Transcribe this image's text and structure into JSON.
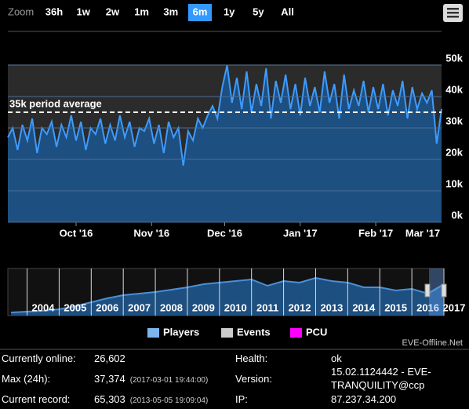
{
  "range_selector": {
    "label": "Zoom",
    "buttons": [
      "36h",
      "1w",
      "2w",
      "1m",
      "3m",
      "6m",
      "1y",
      "5y",
      "All"
    ],
    "selected": 5
  },
  "chart_data": [
    {
      "type": "area",
      "color": "#3d9bff",
      "fill": "#1d4f80",
      "values": [
        27000,
        30000,
        23000,
        31000,
        26000,
        33000,
        22000,
        30000,
        28000,
        32000,
        24000,
        31000,
        27000,
        34000,
        26000,
        32000,
        23000,
        30000,
        28000,
        33000,
        25000,
        31000,
        26000,
        34000,
        27000,
        32000,
        24000,
        30000,
        29000,
        33000,
        25000,
        31000,
        22000,
        32000,
        27000,
        30000,
        18000,
        29000,
        26000,
        33000,
        30000,
        34000,
        37000,
        33000,
        43000,
        50000,
        38000,
        46000,
        36000,
        48000,
        35000,
        44000,
        37000,
        49000,
        33000,
        45000,
        38000,
        47000,
        36000,
        44000,
        34000,
        46000,
        37000,
        43000,
        35000,
        48000,
        38000,
        44000,
        33000,
        47000,
        36000,
        42000,
        37000,
        45000,
        35000,
        43000,
        36000,
        44000,
        34000,
        42000,
        37000,
        45000,
        33000,
        43000,
        36000,
        41000,
        38000,
        42000,
        25000,
        36000
      ],
      "xlim": [
        0,
        89
      ],
      "xticks": [
        {
          "value": 14,
          "label": "Oct '16"
        },
        {
          "value": 29.5,
          "label": "Nov '16"
        },
        {
          "value": 44.5,
          "label": "Dec '16"
        },
        {
          "value": 60,
          "label": "Jan '17"
        },
        {
          "value": 75.5,
          "label": "Feb '17"
        },
        {
          "value": 89.5,
          "label": "Mar '17"
        }
      ],
      "ylim": [
        0,
        60000
      ],
      "yticks": [
        {
          "value": 0,
          "label": "0k"
        },
        {
          "value": 10000,
          "label": "10k"
        },
        {
          "value": 20000,
          "label": "20k"
        },
        {
          "value": 30000,
          "label": "30k"
        },
        {
          "value": 40000,
          "label": "40k"
        },
        {
          "value": 50000,
          "label": "50k"
        }
      ],
      "grid": true,
      "average": {
        "value": 35000,
        "label": "35k period average"
      }
    },
    {
      "type": "area",
      "color": "#4a8fd6",
      "fill": "#1d4f80",
      "x": [
        2003.5,
        2004,
        2004.5,
        2005,
        2005.5,
        2006,
        2006.5,
        2007,
        2007.5,
        2008,
        2008.5,
        2009,
        2009.5,
        2010,
        2010.5,
        2011,
        2011.5,
        2012,
        2012.5,
        2013,
        2013.5,
        2014,
        2014.5,
        2015,
        2015.5,
        2016,
        2016.5,
        2017
      ],
      "values": [
        4000,
        5000,
        6000,
        8000,
        12000,
        17000,
        22000,
        26000,
        28000,
        30000,
        33000,
        36000,
        40000,
        42000,
        44000,
        46000,
        38000,
        44000,
        42000,
        48000,
        44000,
        42000,
        36000,
        36000,
        32000,
        34000,
        28000,
        40000
      ],
      "xlim": [
        2003.4,
        2017
      ],
      "xticks": [
        2004,
        2005,
        2006,
        2007,
        2008,
        2009,
        2010,
        2011,
        2012,
        2013,
        2014,
        2015,
        2016,
        2017
      ],
      "ylim": [
        0,
        60000
      ]
    }
  ],
  "legend": [
    {
      "name": "Players",
      "color": "#7cb5ec"
    },
    {
      "name": "Events",
      "color": "#cccccc"
    },
    {
      "name": "PCU",
      "color": "#ff00ff"
    }
  ],
  "credit": "EVE-Offline.Net",
  "info": {
    "left": [
      {
        "label": "Currently online:",
        "value": "26,602"
      },
      {
        "label": "Max (24h):",
        "value": "37,374",
        "time": "(2017-03-01 19:44:00)"
      },
      {
        "label": "Current record:",
        "value": "65,303",
        "time": "(2013-05-05 19:09:04)"
      }
    ],
    "right": [
      {
        "label": "Health:",
        "value": "ok"
      },
      {
        "label": "Version:",
        "value": "15.02.1124442 - EVE-TRANQUILITY@ccp"
      },
      {
        "label": "IP:",
        "value": "87.237.34.200"
      }
    ]
  }
}
